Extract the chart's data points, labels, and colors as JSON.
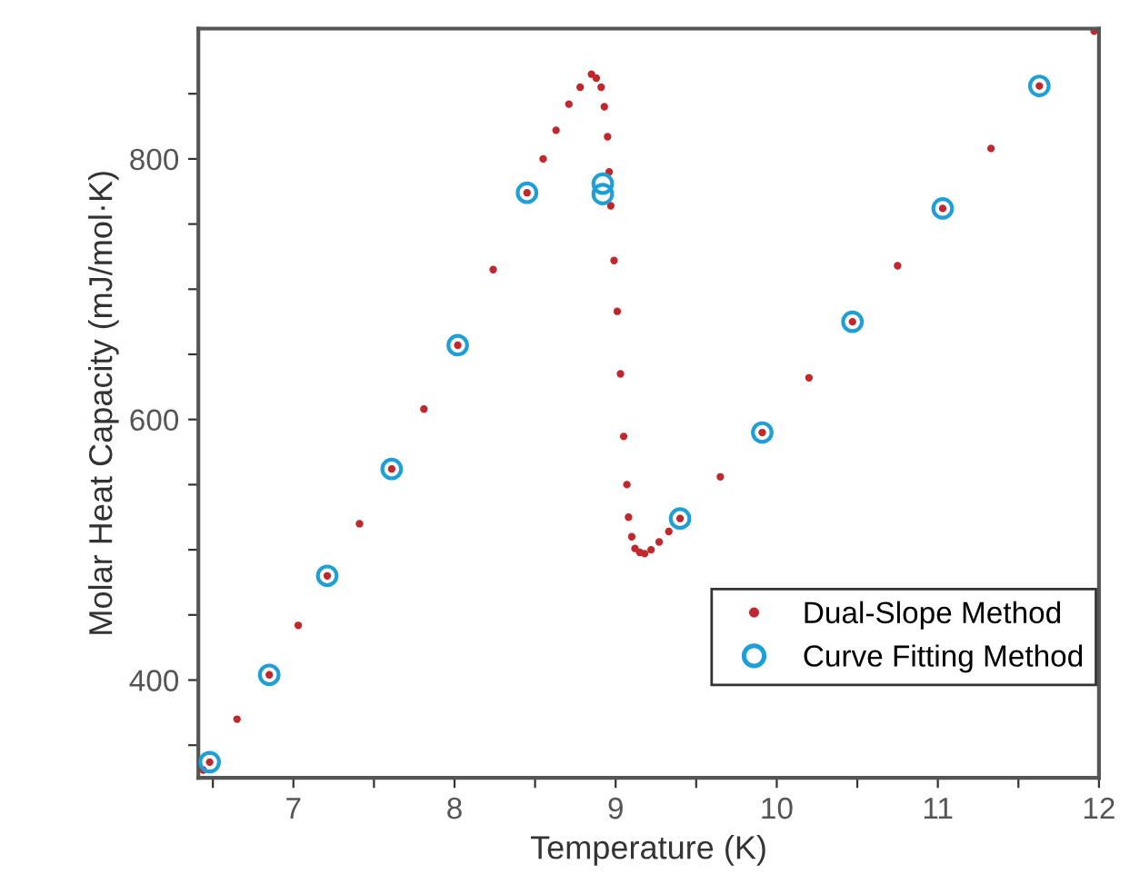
{
  "chart_data": {
    "type": "scatter",
    "xlabel": "Temperature (K)",
    "ylabel": "Molar Heat Capacity (mJ/mol·K)",
    "xlim": [
      6.41,
      12
    ],
    "ylim": [
      325,
      900
    ],
    "xticks": [
      {
        "value": 6.5,
        "label": null
      },
      7,
      {
        "value": 7.5,
        "label": null
      },
      8,
      {
        "value": 8.5,
        "label": null
      },
      9,
      {
        "value": 9.5,
        "label": null
      },
      10,
      {
        "value": 10.5,
        "label": null
      },
      11,
      {
        "value": 11.5,
        "label": null
      },
      12
    ],
    "yticks": [
      {
        "value": 350,
        "label": null
      },
      400,
      {
        "value": 450,
        "label": null
      },
      {
        "value": 500,
        "label": null
      },
      {
        "value": 550,
        "label": null
      },
      600,
      {
        "value": 650,
        "label": null
      },
      {
        "value": 700,
        "label": null
      },
      {
        "value": 750,
        "label": null
      },
      800,
      {
        "value": 850,
        "label": null
      }
    ],
    "grid": false,
    "legend": "bottom right",
    "series": [
      {
        "name": "Dual-Slope Method",
        "color": "#c0282d",
        "marker": "circle",
        "x": [
          6.44,
          6.48,
          6.65,
          6.85,
          7.03,
          7.21,
          7.41,
          7.61,
          7.81,
          8.02,
          8.24,
          8.45,
          8.55,
          8.63,
          8.71,
          8.78,
          8.85,
          8.88,
          8.91,
          8.93,
          8.95,
          8.96,
          8.97,
          8.99,
          9.01,
          9.03,
          9.05,
          9.07,
          9.08,
          9.1,
          9.12,
          9.15,
          9.18,
          9.22,
          9.27,
          9.33,
          9.4,
          9.65,
          9.91,
          10.2,
          10.47,
          10.75,
          11.03,
          11.33,
          11.63,
          11.97
        ],
        "values": [
          331,
          337,
          370,
          404,
          442,
          480,
          520,
          562,
          608,
          657,
          715,
          774,
          800,
          822,
          842,
          855,
          865,
          862,
          855,
          840,
          817,
          790,
          764,
          722,
          683,
          635,
          587,
          550,
          525,
          510,
          501,
          498,
          497,
          500,
          506,
          514,
          524,
          556,
          590,
          632,
          675,
          718,
          762,
          808,
          856,
          898
        ]
      },
      {
        "name": "Curve Fitting Method",
        "color": "#1e9fd6",
        "marker": "circle",
        "x": [
          6.48,
          6.85,
          7.21,
          7.61,
          8.02,
          8.45,
          8.92,
          8.92,
          9.4,
          9.91,
          10.47,
          11.03,
          11.63
        ],
        "values": [
          337,
          404,
          480,
          562,
          657,
          774,
          781,
          773,
          524,
          590,
          675,
          762,
          856
        ]
      }
    ]
  }
}
